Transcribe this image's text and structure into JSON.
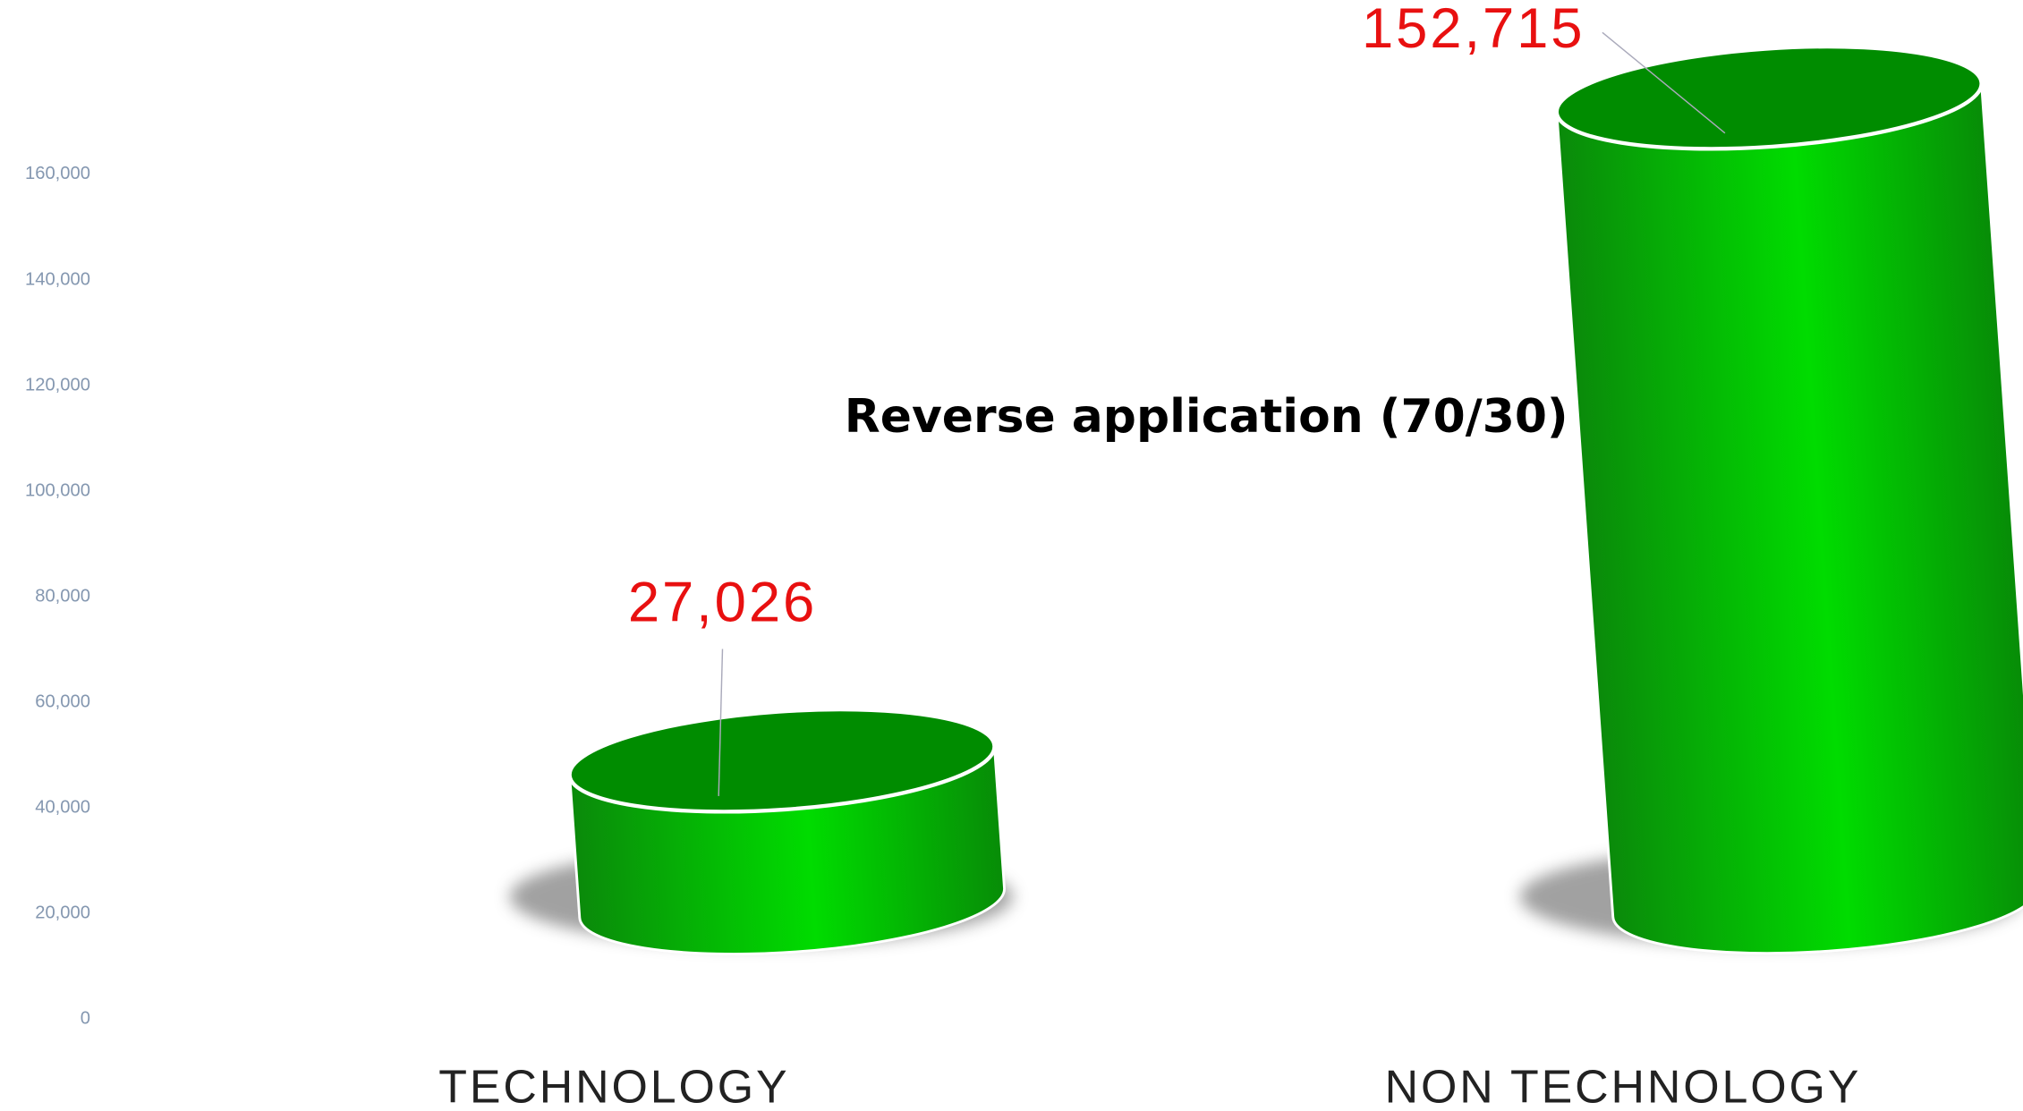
{
  "chart_data": {
    "type": "cylinder",
    "title": "Reverse  application (70/30)",
    "categories": [
      "TECHNOLOGY",
      "NON TECHNOLOGY"
    ],
    "values": [
      27026,
      152715
    ],
    "value_labels": [
      "27,026",
      "152,715"
    ],
    "color": "#00c800",
    "ylim": [
      0,
      160000
    ],
    "yticks": [
      0,
      {
        "value": 20000,
        "label": "20,000"
      },
      {
        "value": 40000,
        "label": "40,000"
      },
      {
        "value": 60000,
        "label": "60,000"
      },
      {
        "value": 80000,
        "label": "80,000"
      },
      {
        "value": 100000,
        "label": "100,000"
      },
      {
        "value": 120000,
        "label": "120,000"
      },
      {
        "value": 140000,
        "label": "140,000"
      },
      {
        "value": 160000,
        "label": "160,000"
      }
    ],
    "grid": false
  }
}
